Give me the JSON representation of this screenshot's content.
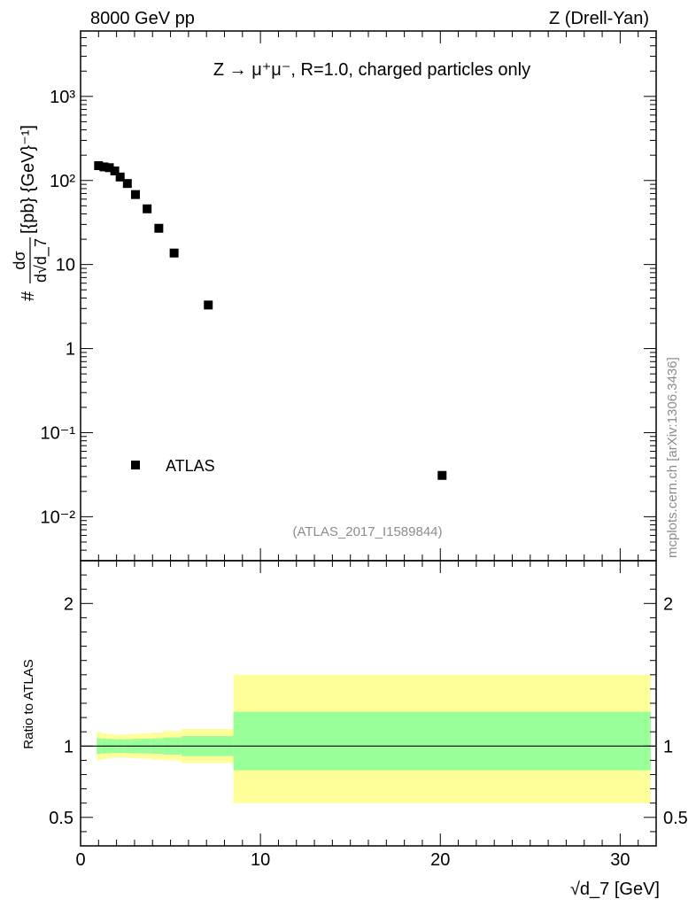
{
  "header": {
    "energy": "8000 GeV pp",
    "process": "Z (Drell-Yan)"
  },
  "side_label": "mcplots.cern.ch [arXiv:1306.3436]",
  "chart_data": [
    {
      "type": "scatter",
      "title": "Z → μ⁺μ⁻, R=1.0, charged particles only",
      "ylabel_prefix": "#",
      "ylabel_frac_num": "dσ",
      "ylabel_frac_den": "d√d_7",
      "ylabel_units": "[{pb} {GeV}⁻¹]",
      "yscale": "log",
      "ylim": [
        0.003,
        6000
      ],
      "xlim": [
        0,
        32
      ],
      "y_tick_labels": [
        "10⁻²",
        "10⁻¹",
        "1",
        "10",
        "10²",
        "10³"
      ],
      "series": [
        {
          "name": "ATLAS",
          "color": "#000000",
          "x": [
            1.0,
            1.3,
            1.6,
            1.9,
            2.2,
            2.6,
            3.05,
            3.7,
            4.35,
            5.2,
            7.1,
            20.1
          ],
          "y": [
            150,
            145,
            142,
            130,
            110,
            92,
            68,
            46,
            27,
            13.7,
            3.3,
            0.031
          ]
        }
      ],
      "reference": "(ATLAS_2017_I1589844)"
    },
    {
      "type": "area",
      "ylabel": "Ratio to ATLAS",
      "xlabel": "√d_7 [GeV]",
      "xlim": [
        0,
        32
      ],
      "ylim": [
        0.3,
        2.3
      ],
      "x_tick_labels": [
        "0",
        "10",
        "20",
        "30"
      ],
      "y_tick_labels": [
        "0.5",
        "1",
        "2"
      ],
      "reference_line": 1,
      "colors": {
        "inner": "#99ff99",
        "outer": "#ffff99"
      },
      "bins": [
        {
          "lo": 0.9,
          "hi": 1.15,
          "inner": [
            0.945,
            1.055
          ],
          "outer": [
            0.9,
            1.1
          ]
        },
        {
          "lo": 1.15,
          "hi": 1.45,
          "inner": [
            0.948,
            1.052
          ],
          "outer": [
            0.91,
            1.09
          ]
        },
        {
          "lo": 1.45,
          "hi": 1.75,
          "inner": [
            0.95,
            1.05
          ],
          "outer": [
            0.915,
            1.085
          ]
        },
        {
          "lo": 1.75,
          "hi": 2.05,
          "inner": [
            0.952,
            1.048
          ],
          "outer": [
            0.92,
            1.08
          ]
        },
        {
          "lo": 2.05,
          "hi": 2.4,
          "inner": [
            0.952,
            1.048
          ],
          "outer": [
            0.92,
            1.08
          ]
        },
        {
          "lo": 2.4,
          "hi": 2.8,
          "inner": [
            0.952,
            1.048
          ],
          "outer": [
            0.918,
            1.082
          ]
        },
        {
          "lo": 2.8,
          "hi": 3.3,
          "inner": [
            0.95,
            1.05
          ],
          "outer": [
            0.915,
            1.085
          ]
        },
        {
          "lo": 3.3,
          "hi": 3.9,
          "inner": [
            0.948,
            1.052
          ],
          "outer": [
            0.912,
            1.088
          ]
        },
        {
          "lo": 3.9,
          "hi": 4.6,
          "inner": [
            0.946,
            1.054
          ],
          "outer": [
            0.905,
            1.095
          ]
        },
        {
          "lo": 4.6,
          "hi": 5.6,
          "inner": [
            0.94,
            1.06
          ],
          "outer": [
            0.9,
            1.105
          ]
        },
        {
          "lo": 5.6,
          "hi": 8.5,
          "inner": [
            0.93,
            1.07
          ],
          "outer": [
            0.88,
            1.12
          ]
        },
        {
          "lo": 8.5,
          "hi": 31.7,
          "inner": [
            0.83,
            1.24
          ],
          "outer": [
            0.6,
            1.5
          ]
        }
      ]
    }
  ]
}
